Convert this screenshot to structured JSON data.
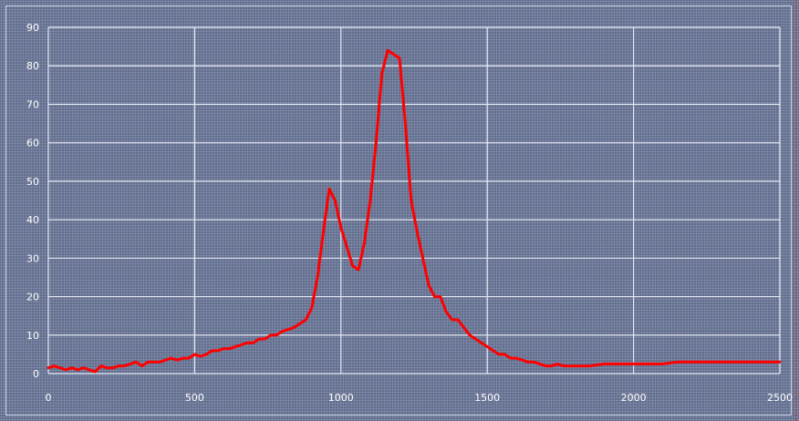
{
  "chart_data": {
    "type": "line",
    "title": "",
    "xlabel": "",
    "ylabel": "",
    "xlim": [
      0,
      2500
    ],
    "ylim": [
      0,
      90
    ],
    "x_ticks": [
      0,
      500,
      1000,
      1500,
      2000,
      2500
    ],
    "y_ticks": [
      0,
      10,
      20,
      30,
      40,
      50,
      60,
      70,
      80,
      90
    ],
    "grid": true,
    "legend": "none",
    "series": [
      {
        "color": "#ff0000",
        "x": [
          0,
          20,
          40,
          60,
          80,
          100,
          120,
          140,
          160,
          180,
          200,
          220,
          240,
          260,
          280,
          300,
          320,
          340,
          360,
          380,
          400,
          420,
          440,
          460,
          480,
          500,
          520,
          540,
          560,
          580,
          600,
          620,
          640,
          660,
          680,
          700,
          720,
          740,
          760,
          780,
          800,
          820,
          840,
          860,
          880,
          900,
          920,
          940,
          960,
          980,
          1000,
          1020,
          1040,
          1060,
          1080,
          1100,
          1120,
          1140,
          1160,
          1180,
          1200,
          1220,
          1240,
          1260,
          1280,
          1300,
          1320,
          1340,
          1360,
          1380,
          1400,
          1420,
          1440,
          1460,
          1480,
          1500,
          1520,
          1540,
          1560,
          1580,
          1600,
          1620,
          1640,
          1660,
          1680,
          1700,
          1720,
          1740,
          1760,
          1780,
          1800,
          1850,
          1900,
          1950,
          2000,
          2050,
          2100,
          2150,
          2200,
          2250,
          2300,
          2350,
          2400,
          2450,
          2500
        ],
        "y": [
          1.5,
          2,
          1.5,
          1,
          1.5,
          1,
          1.5,
          1,
          0.5,
          2,
          1.5,
          1.5,
          2,
          2,
          2.5,
          3,
          2,
          3,
          3,
          3,
          3.5,
          4,
          3.5,
          4,
          4,
          5,
          4.5,
          5,
          6,
          6,
          6.5,
          6.5,
          7,
          7.5,
          8,
          8,
          9,
          9,
          10,
          10,
          11,
          11.5,
          12,
          13,
          14,
          17,
          25,
          37,
          48,
          45,
          38,
          33,
          28,
          27,
          34,
          45,
          60,
          78,
          84,
          83,
          82,
          65,
          45,
          37,
          30,
          23,
          20,
          20,
          16,
          14,
          14,
          12,
          10,
          9,
          8,
          7,
          6,
          5,
          5,
          4,
          4,
          3.5,
          3,
          3,
          2.5,
          2,
          2,
          2.5,
          2,
          2,
          2,
          2,
          2.5,
          2.5,
          2.5,
          2.5,
          2.5,
          3,
          3,
          3,
          3,
          3,
          3,
          3,
          3
        ]
      }
    ]
  }
}
